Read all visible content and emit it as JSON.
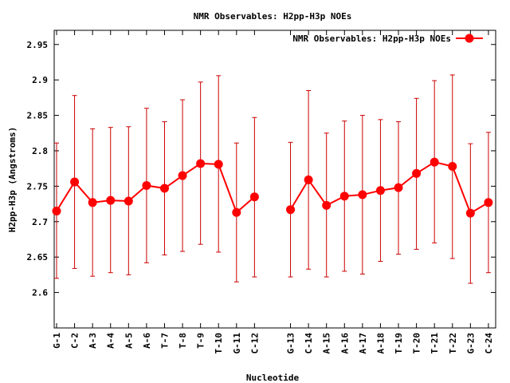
{
  "chart_data": {
    "type": "line",
    "title": "NMR Observables: H2pp-H3p NOEs",
    "xlabel": "Nucleotide",
    "ylabel": "H2pp-H3p (Angstroms)",
    "ylim": [
      2.55,
      2.97
    ],
    "yticks": [
      "2.6",
      "2.65",
      "2.7",
      "2.75",
      "2.8",
      "2.85",
      "2.9",
      "2.95"
    ],
    "grid": false,
    "legend_position": "top-right",
    "series_color": "#ff0000",
    "errorbar_color": "#cc0000",
    "segments": [
      {
        "categories": [
          "G-1",
          "C-2",
          "A-3",
          "A-4",
          "A-5",
          "A-6",
          "T-7",
          "T-8",
          "T-9",
          "T-10",
          "G-11",
          "C-12"
        ],
        "values": [
          2.715,
          2.756,
          2.727,
          2.73,
          2.729,
          2.751,
          2.747,
          2.765,
          2.782,
          2.781,
          2.713,
          2.735
        ],
        "err_low": [
          2.62,
          2.634,
          2.623,
          2.628,
          2.625,
          2.642,
          2.653,
          2.658,
          2.668,
          2.657,
          2.615,
          2.622
        ],
        "err_high": [
          2.811,
          2.878,
          2.831,
          2.833,
          2.834,
          2.86,
          2.841,
          2.872,
          2.897,
          2.906,
          2.811,
          2.847
        ]
      },
      {
        "categories": [
          "G-13",
          "C-14",
          "A-15",
          "A-16",
          "A-17",
          "A-18",
          "T-19",
          "T-20",
          "T-21",
          "T-22",
          "G-23",
          "C-24"
        ],
        "values": [
          2.717,
          2.759,
          2.723,
          2.736,
          2.738,
          2.744,
          2.748,
          2.768,
          2.784,
          2.778,
          2.712,
          2.727
        ],
        "err_low": [
          2.622,
          2.633,
          2.622,
          2.63,
          2.626,
          2.644,
          2.654,
          2.661,
          2.67,
          2.648,
          2.613,
          2.628
        ],
        "err_high": [
          2.812,
          2.885,
          2.825,
          2.842,
          2.85,
          2.844,
          2.841,
          2.874,
          2.899,
          2.907,
          2.81,
          2.826
        ]
      }
    ],
    "series": [
      {
        "name": "NMR Observables: H2pp-H3p NOEs"
      }
    ]
  }
}
